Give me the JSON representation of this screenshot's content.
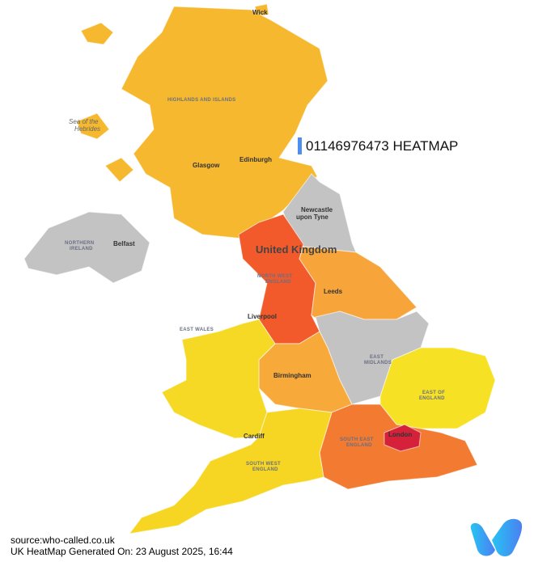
{
  "title": "01146976473 HEATMAP",
  "title_accent_color": "#4d8ef0",
  "footer": {
    "source": "source:who-called.co.uk",
    "generated": "UK HeatMap Generated On: 23 August 2025, 16:44"
  },
  "logo": {
    "name": "who-called-logo",
    "letter": "w"
  },
  "regions": [
    {
      "id": "scotland",
      "color": "#f5b82e"
    },
    {
      "id": "northern-ireland",
      "color": "#c3c3c3"
    },
    {
      "id": "north-east",
      "color": "#c3c3c3"
    },
    {
      "id": "north-west",
      "color": "#f25a2c"
    },
    {
      "id": "yorkshire",
      "color": "#f7a53b"
    },
    {
      "id": "east-midlands",
      "color": "#c3c3c3"
    },
    {
      "id": "west-midlands",
      "color": "#f7aa3a"
    },
    {
      "id": "wales",
      "color": "#f6d924"
    },
    {
      "id": "east-of-england",
      "color": "#f7e125"
    },
    {
      "id": "london",
      "color": "#d5213a"
    },
    {
      "id": "south-east",
      "color": "#f27a31"
    },
    {
      "id": "south-west",
      "color": "#f6d622"
    }
  ],
  "labels": {
    "wick": "Wick",
    "highlands": "HIGHLANDS AND ISLANDS",
    "sea_line1": "Sea of the",
    "sea_line2": "Hebrides",
    "glasgow": "Glasgow",
    "edinburgh": "Edinburgh",
    "newcastle_line1": "Newcastle",
    "newcastle_line2": "upon Tyne",
    "ni_line1": "NORTHERN",
    "ni_line2": "IRELAND",
    "belfast": "Belfast",
    "uk": "United Kingdom",
    "nw_line1": "NORTH WEST",
    "nw_line2": "ENGLAND",
    "leeds": "Leeds",
    "liverpool": "Liverpool",
    "east_wales": "EAST WALES",
    "em_line1": "EAST",
    "em_line2": "MIDLANDS",
    "birmingham": "Birmingham",
    "eoe_line1": "EAST OF",
    "eoe_line2": "ENGLAND",
    "london": "London",
    "se_line1": "SOUTH EAST",
    "se_line2": "ENGLAND",
    "cardiff": "Cardiff",
    "sw_line1": "SOUTH WEST",
    "sw_line2": "ENGLAND"
  }
}
